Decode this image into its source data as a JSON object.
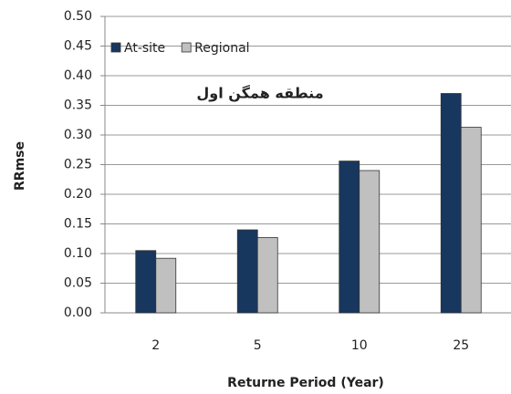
{
  "chart_data": {
    "type": "bar",
    "annotation": "منطقه همگن اول",
    "x_label": "Returne Period (Year)",
    "y_label": "RRmse",
    "categories": [
      "2",
      "5",
      "10",
      "25"
    ],
    "series": [
      {
        "name": "At-site",
        "color": "#17375e",
        "values": [
          0.105,
          0.14,
          0.256,
          0.37
        ]
      },
      {
        "name": "Regional",
        "color": "#c0c0c0",
        "values": [
          0.092,
          0.127,
          0.24,
          0.313
        ]
      }
    ],
    "ylim": [
      0,
      0.5
    ],
    "yticks": [
      {
        "value": 0,
        "label": "0.00"
      },
      {
        "value": 0.05,
        "label": "0.05"
      },
      {
        "value": 0.1,
        "label": "0.10"
      },
      {
        "value": 0.15,
        "label": "0.15"
      },
      {
        "value": 0.2,
        "label": "0.20"
      },
      {
        "value": 0.25,
        "label": "0.25"
      },
      {
        "value": 0.3,
        "label": "0.30"
      },
      {
        "value": 0.35,
        "label": "0.35"
      },
      {
        "value": 0.4,
        "label": "0.40"
      },
      {
        "value": 0.45,
        "label": "0.45"
      },
      {
        "value": 0.5,
        "label": "0.50"
      }
    ],
    "grid": true,
    "legend": "top-left"
  }
}
